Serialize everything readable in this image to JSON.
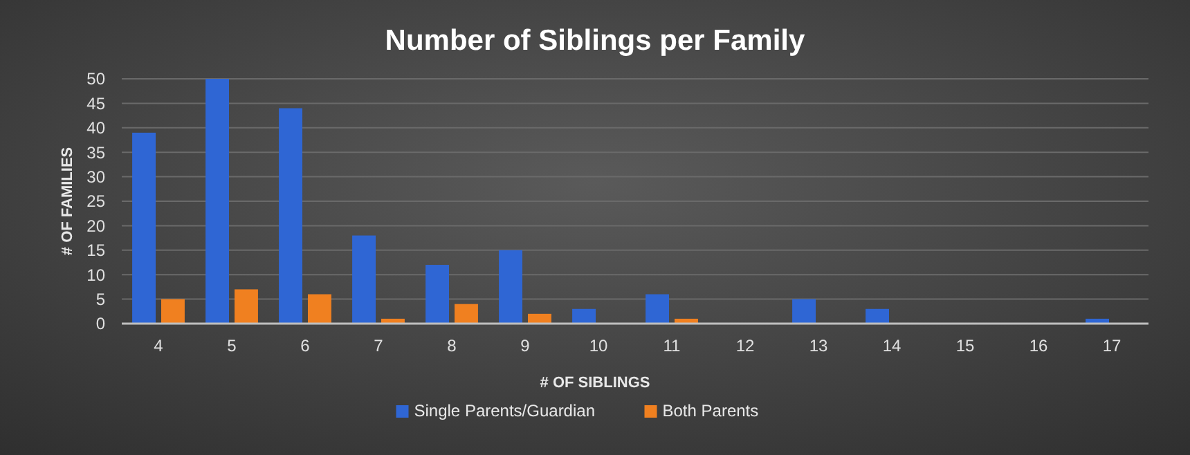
{
  "chart_data": {
    "type": "bar",
    "title": "Number of Siblings per Family",
    "xlabel": "# OF SIBLINGS",
    "ylabel": "# OF FAMILIES",
    "categories": [
      "4",
      "5",
      "6",
      "7",
      "8",
      "9",
      "10",
      "11",
      "12",
      "13",
      "14",
      "15",
      "16",
      "17"
    ],
    "series": [
      {
        "name": "Single Parents/Guardian",
        "color": "#2f66d4",
        "values": [
          39,
          50,
          44,
          18,
          12,
          15,
          3,
          6,
          0,
          5,
          3,
          0,
          0,
          1
        ]
      },
      {
        "name": "Both Parents",
        "color": "#f08020",
        "values": [
          5,
          7,
          6,
          1,
          4,
          2,
          0,
          1,
          0,
          0,
          0,
          0,
          0,
          0
        ]
      }
    ],
    "ylim": [
      0,
      50
    ],
    "yticks": [
      0,
      5,
      10,
      15,
      20,
      25,
      30,
      35,
      40,
      45,
      50
    ],
    "grid": "y",
    "legend": "bottom"
  }
}
